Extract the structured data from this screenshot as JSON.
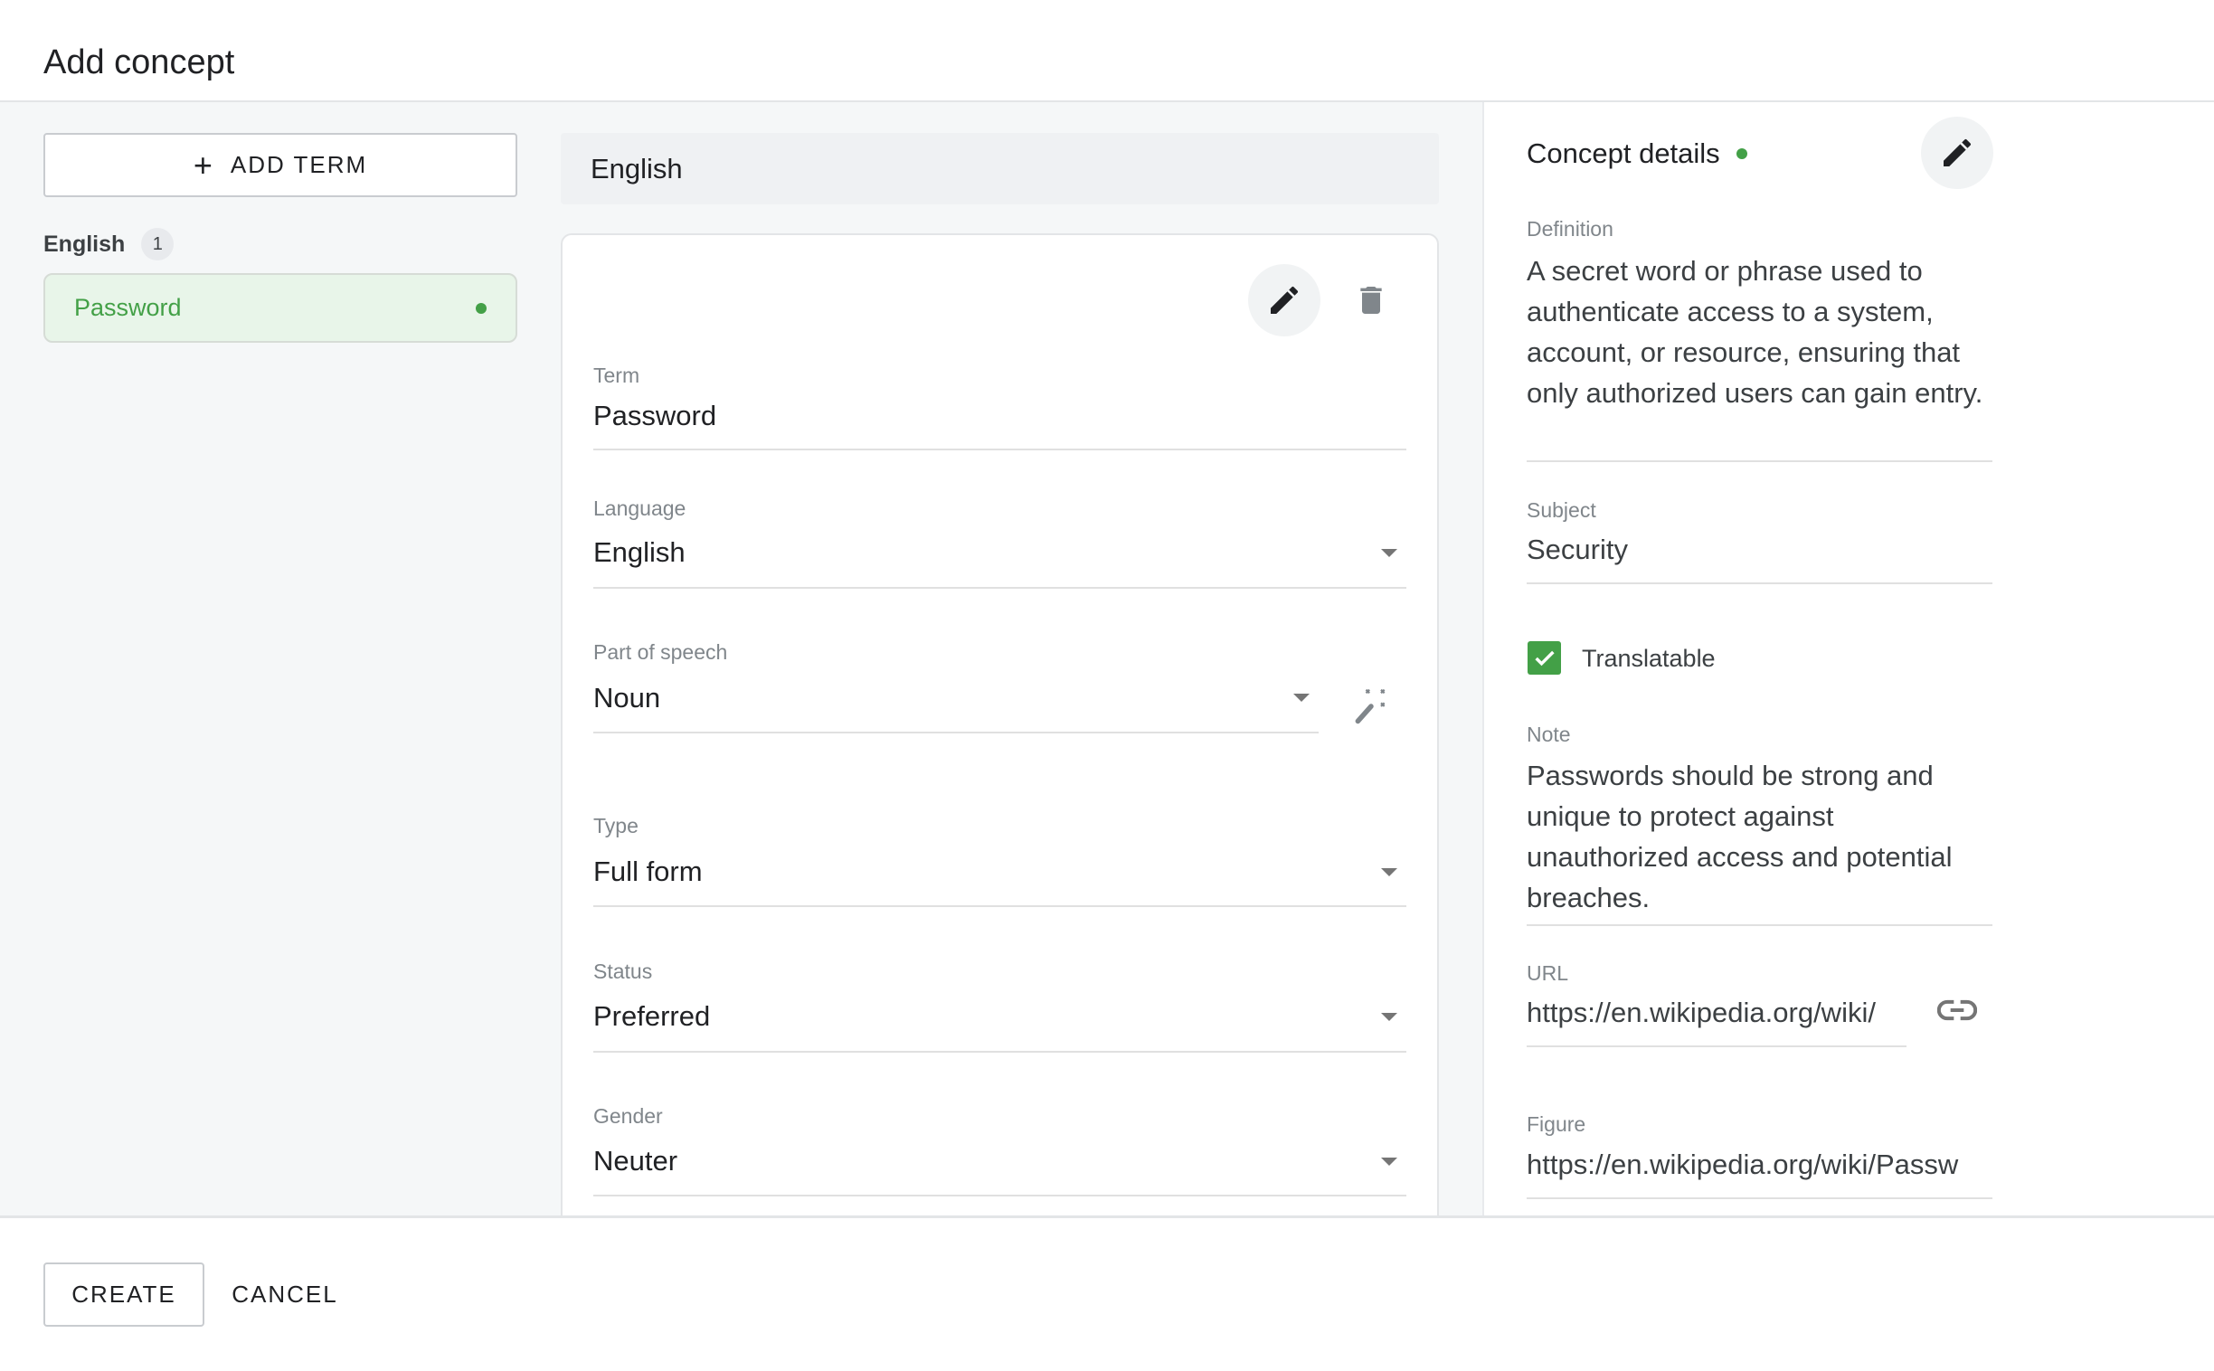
{
  "dialog": {
    "title": "Add concept"
  },
  "sidebar": {
    "add_term_label": "ADD TERM",
    "groups": [
      {
        "language": "English",
        "count": "1",
        "terms": [
          {
            "label": "Password",
            "active": true
          }
        ]
      }
    ]
  },
  "term_panel": {
    "language_header": "English",
    "fields": {
      "term": {
        "label": "Term",
        "value": "Password"
      },
      "language": {
        "label": "Language",
        "value": "English"
      },
      "part_of_speech": {
        "label": "Part of speech",
        "value": "Noun"
      },
      "type": {
        "label": "Type",
        "value": "Full form"
      },
      "status": {
        "label": "Status",
        "value": "Preferred"
      },
      "gender": {
        "label": "Gender",
        "value": "Neuter"
      }
    }
  },
  "concept_details": {
    "title": "Concept details",
    "definition": {
      "label": "Definition",
      "value": "A secret word or phrase used to authenticate access to a system, account, or resource, ensuring that only authorized users can gain entry."
    },
    "subject": {
      "label": "Subject",
      "value": "Security"
    },
    "translatable": {
      "label": "Translatable",
      "checked": true
    },
    "note": {
      "label": "Note",
      "value": "Passwords should be strong and unique to protect against unauthorized access and potential breaches."
    },
    "url": {
      "label": "URL",
      "value": "https://en.wikipedia.org/wiki/"
    },
    "figure": {
      "label": "Figure",
      "value": "https://en.wikipedia.org/wiki/Passw"
    }
  },
  "footer": {
    "create_label": "CREATE",
    "cancel_label": "CANCEL"
  },
  "colors": {
    "accent_green": "#43a047",
    "active_bg": "#e8f5e9",
    "panel_bg": "#f5f7f8"
  }
}
